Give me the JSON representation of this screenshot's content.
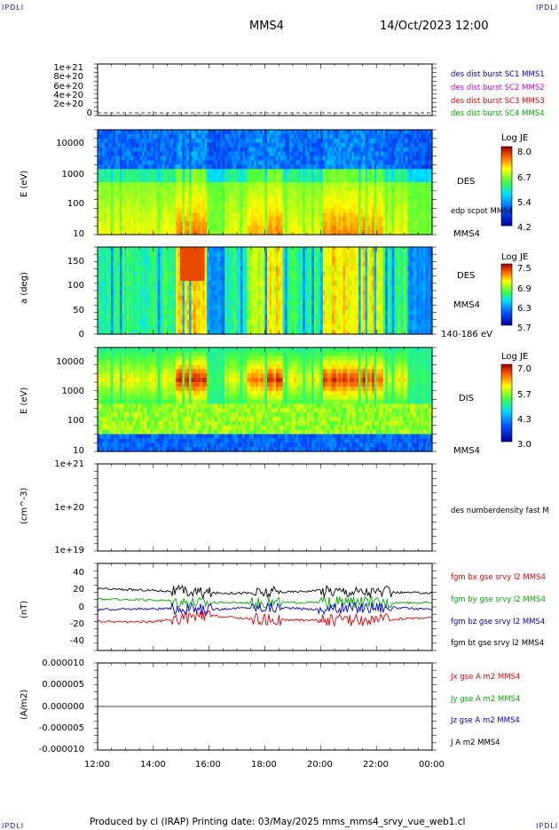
{
  "header": {
    "corner_label": "IPDLI",
    "spacecraft": "MMS4",
    "datetime": "14/Oct/2023 12:00"
  },
  "footer": {
    "text": "Produced by cl (IRAP)   Printing date: 03/May/2025   mms_mms4_srvy_vue_web1.cl"
  },
  "time_axis": {
    "ticks": [
      "12:00",
      "14:00",
      "16:00",
      "18:00",
      "20:00",
      "22:00",
      "00:00"
    ],
    "start_hour": 12,
    "end_hour": 24
  },
  "panels": {
    "dist": {
      "tick_labels": [
        "1e+21",
        "8e+20",
        "6e+20",
        "4e+20",
        "2e+20",
        "0"
      ],
      "legend": [
        {
          "text": "des dist burst SC1 MMS1",
          "color": "#0000cc"
        },
        {
          "text": "des dist burst SC2 MMS2",
          "color": "#cc00cc"
        },
        {
          "text": "des dist burst SC3 MMS3",
          "color": "#dd0000"
        },
        {
          "text": "des dist burst SC4 MMS4",
          "color": "#00aa00"
        }
      ]
    },
    "des_energy": {
      "ylabel": "E (eV)",
      "tick_labels": [
        "10000",
        "1000",
        "100",
        "10"
      ],
      "right_label": "DES",
      "right_sub": "edp scpot MMS4",
      "right_bottom": "MMS4",
      "cbar_title": "Log JE",
      "cbar_ticks": [
        "8.0",
        "6.7",
        "5.4",
        "4.2"
      ]
    },
    "des_pitch": {
      "ylabel": "a (deg)",
      "tick_labels": [
        "150",
        "100",
        "50",
        "0"
      ],
      "right_label": "DES",
      "right_sub": "MMS4",
      "right_bottom": "140-186 eV",
      "cbar_title": "Log JE",
      "cbar_ticks": [
        "7.5",
        "6.9",
        "6.3",
        "5.7"
      ]
    },
    "dis_energy": {
      "ylabel": "E (eV)",
      "tick_labels": [
        "10000",
        "1000",
        "100",
        "10"
      ],
      "right_label": "DIS",
      "right_bottom": "MMS4",
      "cbar_title": "Log JE",
      "cbar_ticks": [
        "7.0",
        "5.7",
        "4.3",
        "3.0"
      ]
    },
    "density": {
      "ylabel": "(cm^-3)",
      "tick_labels": [
        "1e+21",
        "1e+20",
        "1e+19"
      ],
      "legend": "des numberdensity fast M"
    },
    "bfield": {
      "ylabel": "(nT)",
      "tick_labels": [
        "40",
        "20",
        "0",
        "-20",
        "-40"
      ],
      "legend": [
        {
          "text": "fgm bx gse srvy l2 MMS4",
          "color": "#dd0000"
        },
        {
          "text": "fgm by gse srvy l2 MMS4",
          "color": "#00aa00"
        },
        {
          "text": "fgm bz gse srvy l2 MMS4",
          "color": "#0000cc"
        },
        {
          "text": "fgm bt gse srvy l2 MMS4",
          "color": "#000000"
        }
      ]
    },
    "current": {
      "ylabel": "(A/m2)",
      "tick_labels": [
        "0.000010",
        "0.000005",
        "0.000000",
        "-0.000005",
        "-0.000010"
      ],
      "legend": [
        {
          "text": "Jx gse A m2 MMS4",
          "color": "#dd0000"
        },
        {
          "text": "Jy gse A m2 MMS4",
          "color": "#00aa00"
        },
        {
          "text": "Jz gse A m2 MMS4",
          "color": "#0000cc"
        },
        {
          "text": "J A m2 MMS4",
          "color": "#000000"
        }
      ]
    }
  },
  "chart_data": {
    "type": "line",
    "title": "MMS4",
    "x": [
      "12:00",
      "14:00",
      "16:00",
      "18:00",
      "20:00",
      "22:00",
      "00:00"
    ],
    "series": [
      {
        "name": "fgm bx gse srvy l2 MMS4",
        "color": "#dd0000",
        "values": [
          -17,
          -17,
          -10,
          -15,
          -15,
          -15,
          -12
        ]
      },
      {
        "name": "fgm by gse srvy l2 MMS4",
        "color": "#00aa00",
        "values": [
          9,
          8,
          5,
          5,
          5,
          5,
          5
        ]
      },
      {
        "name": "fgm bz gse srvy l2 MMS4",
        "color": "#0000cc",
        "values": [
          -3,
          -2,
          -3,
          0,
          -3,
          0,
          -3
        ]
      },
      {
        "name": "fgm bt gse srvy l2 MMS4",
        "color": "#000000",
        "values": [
          21,
          19,
          16,
          16,
          19,
          17,
          16
        ]
      }
    ],
    "ylim": [
      -50,
      50
    ]
  }
}
